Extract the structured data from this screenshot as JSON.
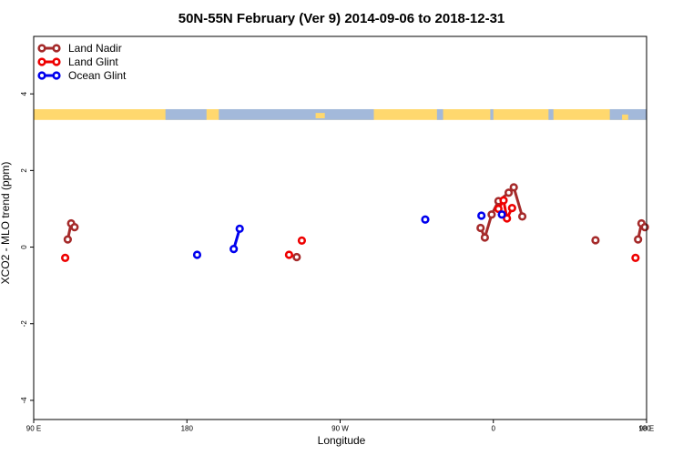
{
  "chart_data": {
    "type": "line",
    "title": "50N-55N February (Ver 9)   2014-09-06 to 2018-12-31",
    "xlabel": "Longitude",
    "ylabel": "XCO2 - MLO trend (ppm)",
    "xlim": [
      90,
      450
    ],
    "ylim": [
      -4.5,
      5.5
    ],
    "x_ticks": [
      {
        "value": 90,
        "label": "90 E"
      },
      {
        "value": 180,
        "label": "180"
      },
      {
        "value": 270,
        "label": "90 W"
      },
      {
        "value": 360,
        "label": "0"
      },
      {
        "value": 450,
        "label": "90 E"
      }
    ],
    "extra_x_tick_label": "180",
    "y_ticks": [
      {
        "value": -4,
        "label": "-4"
      },
      {
        "value": -2,
        "label": "-2"
      },
      {
        "value": 0,
        "label": "0"
      },
      {
        "value": 2,
        "label": "2"
      },
      {
        "value": 4,
        "label": "4"
      }
    ],
    "map_strip": {
      "ymin": 3.32,
      "ymax": 3.6,
      "land_color": "#FFD86E",
      "ocean_color": "#A3B9DA"
    },
    "series": [
      {
        "name": "Land Nadir",
        "color": "#A52A2A",
        "segments": [
          [
            [
              110,
              0.2
            ],
            [
              112,
              0.62
            ],
            [
              114,
              0.52
            ]
          ],
          [
            [
              244.5,
              -0.26
            ]
          ],
          [
            [
              352.5,
              0.5
            ],
            [
              355,
              0.25
            ],
            [
              359,
              0.85
            ],
            [
              363,
              1.2
            ],
            [
              369,
              1.42
            ],
            [
              372,
              1.56
            ],
            [
              377,
              0.8
            ]
          ],
          [
            [
              420,
              0.18
            ]
          ],
          [
            [
              445,
              0.2
            ],
            [
              447,
              0.62
            ],
            [
              449,
              0.52
            ]
          ]
        ]
      },
      {
        "name": "Land Glint",
        "color": "#EE0000",
        "segments": [
          [
            [
              108.5,
              -0.28
            ]
          ],
          [
            [
              240,
              -0.2
            ]
          ],
          [
            [
              247.5,
              0.17
            ]
          ],
          [
            [
              363,
              1.0
            ],
            [
              366,
              1.22
            ],
            [
              368,
              0.75
            ],
            [
              371,
              1.02
            ]
          ],
          [
            [
              443.5,
              -0.28
            ]
          ]
        ]
      },
      {
        "name": "Ocean Glint",
        "color": "#0000EE",
        "segments": [
          [
            [
              186,
              -0.2
            ]
          ],
          [
            [
              207.5,
              -0.05
            ],
            [
              211,
              0.48
            ]
          ],
          [
            [
              320,
              0.72
            ]
          ],
          [
            [
              353,
              0.82
            ]
          ],
          [
            [
              365,
              0.85
            ]
          ]
        ]
      }
    ]
  }
}
